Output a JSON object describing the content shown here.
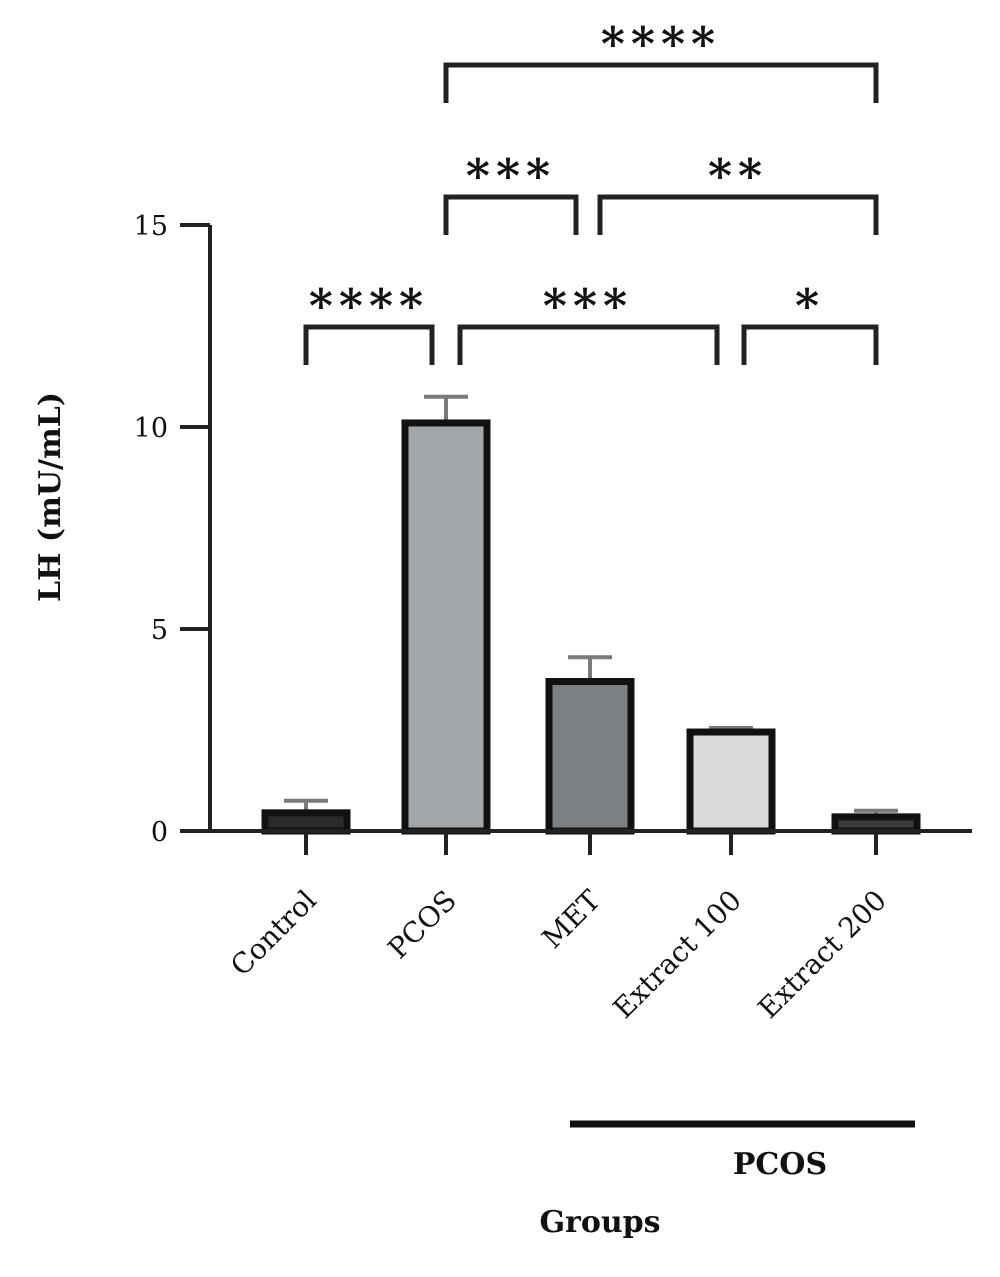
{
  "chart_data": {
    "type": "bar",
    "categories": [
      "Control",
      "PCOS",
      "MET",
      "Extract 100",
      "Extract 200"
    ],
    "values": [
      0.45,
      10.1,
      3.7,
      2.45,
      0.35
    ],
    "errors": [
      0.3,
      0.65,
      0.6,
      0.1,
      0.15
    ],
    "bar_colors": [
      "#2b2b2b",
      "#a2a6a8",
      "#7c8082",
      "#d9dbdc",
      "#3c3c3c"
    ],
    "ylabel": "LH (mU/mL)",
    "xlabel": "Groups",
    "yticks": [
      0,
      5,
      10,
      15
    ],
    "ylim": [
      0,
      15
    ],
    "group_label": "PCOS",
    "group_span": [
      "MET",
      "Extract 200"
    ],
    "significance": [
      {
        "from": "Control",
        "to": "PCOS",
        "label": "****"
      },
      {
        "from": "PCOS",
        "to": "Extract 100",
        "label": "***"
      },
      {
        "from": "Extract 100",
        "to": "Extract 200",
        "label": "*"
      },
      {
        "from": "PCOS",
        "to": "MET",
        "label": "***"
      },
      {
        "from": "MET",
        "to": "Extract 200",
        "label": "**"
      },
      {
        "from": "PCOS",
        "to": "Extract 200",
        "label": "****"
      }
    ],
    "grid": false,
    "legend": "none"
  }
}
